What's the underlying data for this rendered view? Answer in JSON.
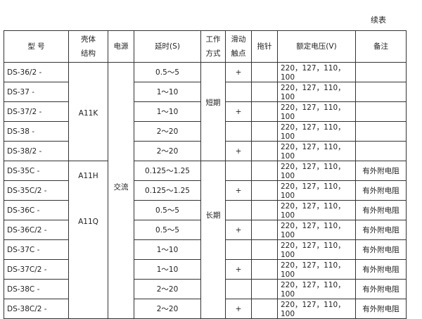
{
  "caption": "续表",
  "headers": [
    "型 号",
    "壳体\n结构",
    "电源",
    "延时(S)",
    "工作\n方式",
    "滑动\n触点",
    "拖针",
    "额定电压(V)",
    "备注"
  ],
  "shell_groups": [
    "A11K",
    "A11H",
    "A11Q"
  ],
  "power": "交流",
  "work_modes": [
    "短期",
    "长期"
  ],
  "rows": [
    {
      "model": "DS-36/2 -",
      "delay": "0.5～5",
      "slide": "+",
      "voltage": "220，127，110，100",
      "note": ""
    },
    {
      "model": "DS-37  -",
      "delay": "1～10",
      "slide": "",
      "voltage": "220，127，110，100",
      "note": ""
    },
    {
      "model": "DS-37/2 -",
      "delay": "1～10",
      "slide": "+",
      "voltage": "220，127，110，100",
      "note": ""
    },
    {
      "model": "DS-38  -",
      "delay": "2～20",
      "slide": "",
      "voltage": "220，127，110，100",
      "note": ""
    },
    {
      "model": "DS-38/2 -",
      "delay": "2～20",
      "slide": "+",
      "voltage": "220，127，110，100",
      "note": ""
    },
    {
      "model": "DS-35C  -",
      "delay": "0.125～1.25",
      "slide": "",
      "voltage": "220，127，110，100",
      "note": "有外附电阻"
    },
    {
      "model": "DS-35C/2 -",
      "delay": "0.125～1.25",
      "slide": "+",
      "voltage": "220，127，110，100",
      "note": "有外附电阻"
    },
    {
      "model": "DS-36C  -",
      "delay": "0.5～5",
      "slide": "",
      "voltage": "220，127，110，100",
      "note": "有外附电阻"
    },
    {
      "model": "DS-36C/2 -",
      "delay": "0.5～5",
      "slide": "+",
      "voltage": "220，127，110，100",
      "note": "有外附电阻"
    },
    {
      "model": "DS-37C  -",
      "delay": "1～10",
      "slide": "",
      "voltage": "220，127，110，100",
      "note": "有外附电阻"
    },
    {
      "model": "DS-37C/2 -",
      "delay": "1～10",
      "slide": "+",
      "voltage": "220，127，110，100",
      "note": "有外附电阻"
    },
    {
      "model": "DS-38C  -",
      "delay": "2～20",
      "slide": "",
      "voltage": "220，127，110，100",
      "note": "有外附电阻"
    },
    {
      "model": "DS-38C/2  -",
      "delay": "2～20",
      "slide": "+",
      "voltage": "220，127，110，100",
      "note": "有外附电阻"
    }
  ]
}
